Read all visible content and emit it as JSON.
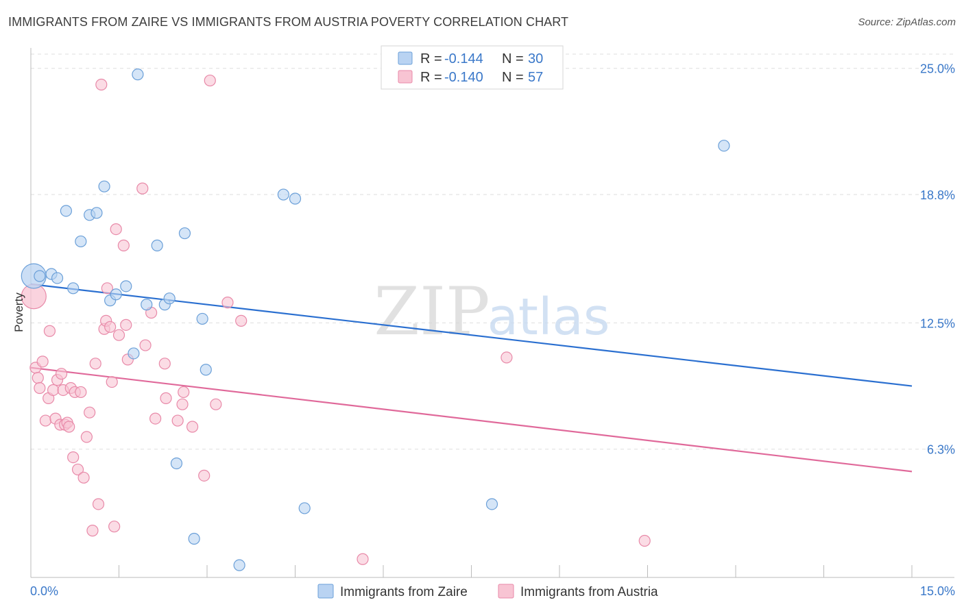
{
  "title": "IMMIGRANTS FROM ZAIRE VS IMMIGRANTS FROM AUSTRIA POVERTY CORRELATION CHART",
  "source": "Source: ZipAtlas.com",
  "watermark": {
    "zip": "ZIP",
    "atlas": "atlas"
  },
  "colors": {
    "zaire_fill": "#b9d3f2",
    "zaire_stroke": "#6a9fd8",
    "zaire_line": "#2a6fd0",
    "austria_fill": "#f8c4d3",
    "austria_stroke": "#e889a8",
    "austria_line": "#e0699a",
    "axis_label": "#3a78c9",
    "grid": "#dedede"
  },
  "legend": {
    "rows": [
      {
        "r_label": "R =",
        "r_value": "-0.144",
        "n_label": "N =",
        "n_value": "30"
      },
      {
        "r_label": "R =",
        "r_value": "-0.140",
        "n_label": "N =",
        "n_value": "57"
      }
    ]
  },
  "chart_data": {
    "type": "scatter",
    "title": "IMMIGRANTS FROM ZAIRE VS IMMIGRANTS FROM AUSTRIA POVERTY CORRELATION CHART",
    "xlabel": "",
    "ylabel": "Poverty",
    "xlim": [
      0,
      15
    ],
    "ylim": [
      0,
      26
    ],
    "x_tick_labels": [
      "0.0%",
      "15.0%"
    ],
    "y_ticks": [
      6.3,
      12.5,
      18.8,
      25.0
    ],
    "y_tick_labels": [
      "6.3%",
      "12.5%",
      "18.8%",
      "25.0%"
    ],
    "series": [
      {
        "name": "Immigrants from Zaire",
        "key": "zaire",
        "r": -0.144,
        "n": 30,
        "trend": {
          "x0": 0,
          "y0": 14.4,
          "x1": 15,
          "y1": 9.4
        },
        "points": [
          {
            "x": 0.05,
            "y": 14.8,
            "big": true
          },
          {
            "x": 0.15,
            "y": 14.8
          },
          {
            "x": 0.35,
            "y": 14.9
          },
          {
            "x": 0.45,
            "y": 14.7
          },
          {
            "x": 0.6,
            "y": 18.0
          },
          {
            "x": 0.72,
            "y": 14.2
          },
          {
            "x": 0.85,
            "y": 16.5
          },
          {
            "x": 1.0,
            "y": 17.8
          },
          {
            "x": 1.12,
            "y": 17.9
          },
          {
            "x": 1.25,
            "y": 19.2
          },
          {
            "x": 1.35,
            "y": 13.6
          },
          {
            "x": 1.45,
            "y": 13.9
          },
          {
            "x": 1.62,
            "y": 14.3
          },
          {
            "x": 1.75,
            "y": 11.0
          },
          {
            "x": 1.82,
            "y": 24.7
          },
          {
            "x": 1.97,
            "y": 13.4
          },
          {
            "x": 2.15,
            "y": 16.3
          },
          {
            "x": 2.28,
            "y": 13.4
          },
          {
            "x": 2.36,
            "y": 13.7
          },
          {
            "x": 2.48,
            "y": 5.6
          },
          {
            "x": 2.62,
            "y": 16.9
          },
          {
            "x": 2.78,
            "y": 1.9
          },
          {
            "x": 2.92,
            "y": 12.7
          },
          {
            "x": 2.98,
            "y": 10.2
          },
          {
            "x": 3.55,
            "y": 0.6
          },
          {
            "x": 4.3,
            "y": 18.8
          },
          {
            "x": 4.5,
            "y": 18.6
          },
          {
            "x": 4.66,
            "y": 3.4
          },
          {
            "x": 7.85,
            "y": 3.6
          },
          {
            "x": 11.8,
            "y": 21.2
          }
        ]
      },
      {
        "name": "Immigrants from Austria",
        "key": "austria",
        "r": -0.14,
        "n": 57,
        "trend": {
          "x0": 0,
          "y0": 10.3,
          "x1": 15,
          "y1": 5.2
        },
        "points": [
          {
            "x": 0.05,
            "y": 13.8,
            "big": true
          },
          {
            "x": 0.08,
            "y": 10.3
          },
          {
            "x": 0.12,
            "y": 9.8
          },
          {
            "x": 0.15,
            "y": 9.3
          },
          {
            "x": 0.2,
            "y": 10.6
          },
          {
            "x": 0.25,
            "y": 7.7
          },
          {
            "x": 0.3,
            "y": 8.8
          },
          {
            "x": 0.32,
            "y": 12.1
          },
          {
            "x": 0.38,
            "y": 9.2
          },
          {
            "x": 0.42,
            "y": 7.8
          },
          {
            "x": 0.45,
            "y": 9.7
          },
          {
            "x": 0.5,
            "y": 7.5
          },
          {
            "x": 0.52,
            "y": 10.0
          },
          {
            "x": 0.55,
            "y": 9.2
          },
          {
            "x": 0.58,
            "y": 7.5
          },
          {
            "x": 0.62,
            "y": 7.6
          },
          {
            "x": 0.65,
            "y": 7.4
          },
          {
            "x": 0.68,
            "y": 9.3
          },
          {
            "x": 0.72,
            "y": 5.9
          },
          {
            "x": 0.75,
            "y": 9.1
          },
          {
            "x": 0.8,
            "y": 5.3
          },
          {
            "x": 0.85,
            "y": 9.1
          },
          {
            "x": 0.9,
            "y": 4.9
          },
          {
            "x": 0.95,
            "y": 6.9
          },
          {
            "x": 1.0,
            "y": 8.1
          },
          {
            "x": 1.05,
            "y": 2.3
          },
          {
            "x": 1.1,
            "y": 10.5
          },
          {
            "x": 1.15,
            "y": 3.6
          },
          {
            "x": 1.2,
            "y": 24.2
          },
          {
            "x": 1.25,
            "y": 12.2
          },
          {
            "x": 1.28,
            "y": 12.6
          },
          {
            "x": 1.3,
            "y": 14.2
          },
          {
            "x": 1.35,
            "y": 12.3
          },
          {
            "x": 1.38,
            "y": 9.6
          },
          {
            "x": 1.42,
            "y": 2.5
          },
          {
            "x": 1.45,
            "y": 17.1
          },
          {
            "x": 1.5,
            "y": 11.9
          },
          {
            "x": 1.58,
            "y": 16.3
          },
          {
            "x": 1.62,
            "y": 12.4
          },
          {
            "x": 1.65,
            "y": 10.7
          },
          {
            "x": 1.9,
            "y": 19.1
          },
          {
            "x": 1.95,
            "y": 11.4
          },
          {
            "x": 2.05,
            "y": 13.0
          },
          {
            "x": 2.12,
            "y": 7.8
          },
          {
            "x": 2.28,
            "y": 10.5
          },
          {
            "x": 2.3,
            "y": 8.8
          },
          {
            "x": 2.5,
            "y": 7.7
          },
          {
            "x": 2.58,
            "y": 8.5
          },
          {
            "x": 2.6,
            "y": 9.1
          },
          {
            "x": 2.75,
            "y": 7.4
          },
          {
            "x": 2.95,
            "y": 5.0
          },
          {
            "x": 3.05,
            "y": 24.4
          },
          {
            "x": 3.15,
            "y": 8.5
          },
          {
            "x": 3.35,
            "y": 13.5
          },
          {
            "x": 3.58,
            "y": 12.6
          },
          {
            "x": 5.65,
            "y": 0.9
          },
          {
            "x": 8.1,
            "y": 10.8
          },
          {
            "x": 10.45,
            "y": 1.8
          }
        ]
      }
    ]
  }
}
